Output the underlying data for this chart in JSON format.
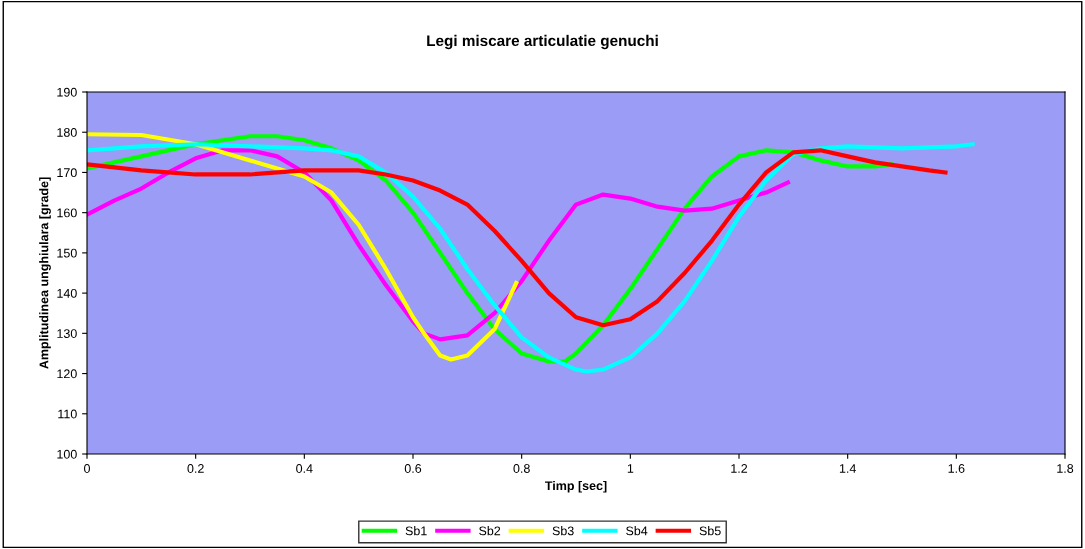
{
  "chart_data": {
    "type": "line",
    "title": "Legi miscare articulatie genuchi",
    "xlabel": "Timp [sec]",
    "ylabel": "Amplitudinea unghiulara [grade]",
    "xlim": [
      0,
      1.8
    ],
    "xticks": [
      0,
      0.2,
      0.4,
      0.6,
      0.8,
      1,
      1.2,
      1.4,
      1.6,
      1.8
    ],
    "ylim": [
      100,
      190
    ],
    "yticks": [
      100,
      110,
      120,
      130,
      140,
      150,
      160,
      170,
      180,
      190
    ],
    "grid": false,
    "legend": "bottom",
    "marker": "none",
    "line_style": "solid",
    "series": [
      {
        "name": "Sb1",
        "color": "#00ff00",
        "x": [
          0,
          0.1,
          0.2,
          0.3,
          0.35,
          0.4,
          0.45,
          0.5,
          0.55,
          0.6,
          0.65,
          0.7,
          0.75,
          0.8,
          0.85,
          0.88,
          0.9,
          0.95,
          1.0,
          1.05,
          1.1,
          1.15,
          1.2,
          1.25,
          1.3,
          1.35,
          1.4,
          1.45,
          1.48
        ],
        "values": [
          171,
          174,
          177,
          179,
          179,
          178,
          176,
          173,
          168,
          160,
          150,
          140,
          131,
          125,
          123,
          123,
          125,
          132,
          141,
          151,
          161,
          169,
          174,
          175.5,
          175,
          173,
          171.5,
          171.5,
          172
        ]
      },
      {
        "name": "Sb2",
        "color": "#ff00ff",
        "x": [
          0,
          0.05,
          0.1,
          0.15,
          0.2,
          0.25,
          0.3,
          0.35,
          0.4,
          0.45,
          0.5,
          0.55,
          0.6,
          0.62,
          0.65,
          0.7,
          0.75,
          0.8,
          0.85,
          0.9,
          0.95,
          1.0,
          1.05,
          1.1,
          1.15,
          1.2,
          1.25,
          1.29
        ],
        "values": [
          159.5,
          163,
          166,
          170,
          173.5,
          175.5,
          175.5,
          174,
          170,
          163,
          152,
          142,
          133,
          130,
          128.5,
          129.5,
          135,
          143,
          153,
          162,
          164.5,
          163.5,
          161.5,
          160.5,
          161,
          163,
          165,
          167.5
        ]
      },
      {
        "name": "Sb3",
        "color": "#ffff00",
        "x": [
          0,
          0.1,
          0.2,
          0.3,
          0.4,
          0.45,
          0.5,
          0.55,
          0.6,
          0.62,
          0.65,
          0.67,
          0.7,
          0.75,
          0.79
        ],
        "values": [
          179.5,
          179.3,
          177,
          173,
          169,
          165,
          157,
          146,
          134,
          130,
          124.5,
          123.5,
          124.5,
          131,
          142.5
        ]
      },
      {
        "name": "Sb4",
        "color": "#00ffff",
        "x": [
          0,
          0.1,
          0.2,
          0.3,
          0.4,
          0.45,
          0.5,
          0.55,
          0.6,
          0.65,
          0.7,
          0.75,
          0.8,
          0.85,
          0.9,
          0.92,
          0.95,
          1.0,
          1.05,
          1.1,
          1.15,
          1.2,
          1.25,
          1.3,
          1.35,
          1.4,
          1.5,
          1.6,
          1.63
        ],
        "values": [
          175.5,
          176.5,
          177,
          176.5,
          176,
          175.5,
          174,
          170,
          164,
          156,
          146,
          137,
          129,
          124,
          121,
          120.5,
          121,
          124,
          130,
          138,
          148,
          159,
          168,
          174.5,
          176,
          176.5,
          176,
          176.5,
          177
        ]
      },
      {
        "name": "Sb5",
        "color": "#ff0000",
        "x": [
          0,
          0.1,
          0.2,
          0.3,
          0.4,
          0.5,
          0.55,
          0.6,
          0.65,
          0.7,
          0.75,
          0.8,
          0.85,
          0.9,
          0.95,
          1.0,
          1.05,
          1.1,
          1.15,
          1.2,
          1.25,
          1.3,
          1.35,
          1.4,
          1.45,
          1.5,
          1.55,
          1.58
        ],
        "values": [
          172,
          170.5,
          169.5,
          169.5,
          170.5,
          170.5,
          169.5,
          168,
          165.5,
          162,
          155.5,
          148,
          140,
          134,
          132,
          133.5,
          138,
          145,
          153,
          162,
          170,
          175,
          175.5,
          174,
          172.5,
          171.5,
          170.5,
          170
        ]
      }
    ]
  }
}
